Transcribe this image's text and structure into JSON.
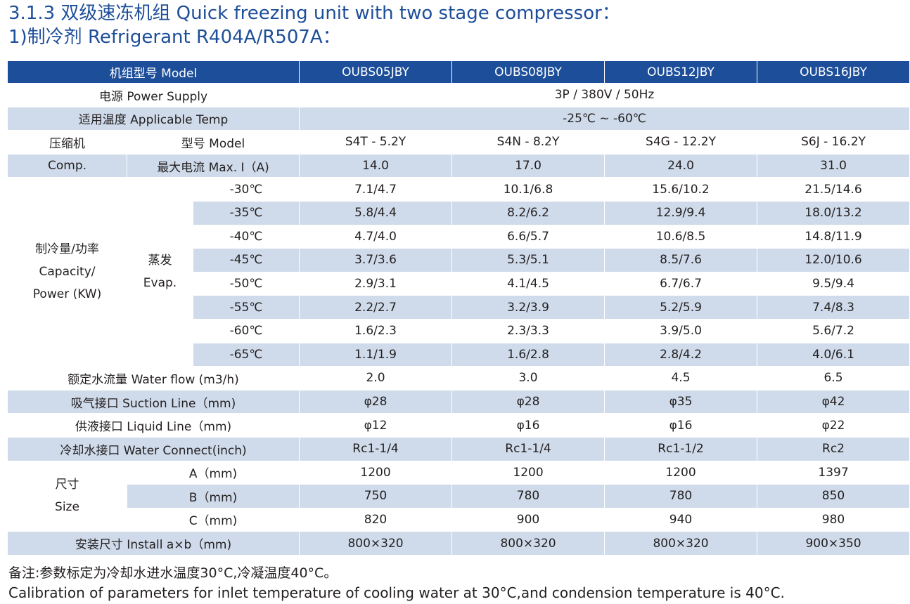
{
  "title": {
    "line1": "3.1.3 双级速冻机组 Quick freezing unit with two stage compressor：",
    "line2": "1)制冷剂 Refrigerant  R404A/R507A："
  },
  "colors": {
    "header": "#1d4e9a",
    "band": "#cfdbea",
    "title": "#1d4e9a"
  },
  "table": {
    "header": {
      "label": "机组型号 Model",
      "models": [
        "OUBS05JBY",
        "OUBS08JBY",
        "OUBS12JBY",
        "OUBS16JBY"
      ]
    },
    "power_supply": {
      "label": "电源 Power Supply",
      "value": "3P / 380V / 50Hz"
    },
    "applicable_temp": {
      "label": "适用温度 Applicable Temp",
      "value": "-25℃ ~ -60℃"
    },
    "compressor": {
      "group_cn": "压缩机",
      "group_en": "Comp.",
      "model_label": "型号 Model",
      "models": [
        "S4T - 5.2Y",
        "S4N - 8.2Y",
        "S4G - 12.2Y",
        "S6J - 16.2Y"
      ],
      "current_label": "最大电流 Max. I（A)",
      "currents": [
        "14.0",
        "17.0",
        "24.0",
        "31.0"
      ]
    },
    "capacity": {
      "group_l1": "制冷量/功率",
      "group_l2": "Capacity/",
      "group_l3": "Power (KW)",
      "evap_l1": "蒸发",
      "evap_l2": "Evap.",
      "rows": [
        {
          "temp": "-30℃",
          "values": [
            "7.1/4.7",
            "10.1/6.8",
            "15.6/10.2",
            "21.5/14.6"
          ]
        },
        {
          "temp": "-35℃",
          "values": [
            "5.8/4.4",
            "8.2/6.2",
            "12.9/9.4",
            "18.0/13.2"
          ]
        },
        {
          "temp": "-40℃",
          "values": [
            "4.7/4.0",
            "6.6/5.7",
            "10.6/8.5",
            "14.8/11.9"
          ]
        },
        {
          "temp": "-45℃",
          "values": [
            "3.7/3.6",
            "5.3/5.1",
            "8.5/7.6",
            "12.0/10.6"
          ]
        },
        {
          "temp": "-50℃",
          "values": [
            "2.9/3.1",
            "4.1/4.5",
            "6.7/6.7",
            "9.5/9.4"
          ]
        },
        {
          "temp": "-55℃",
          "values": [
            "2.2/2.7",
            "3.2/3.9",
            "5.2/5.9",
            "7.4/8.3"
          ]
        },
        {
          "temp": "-60℃",
          "values": [
            "1.6/2.3",
            "2.3/3.3",
            "3.9/5.0",
            "5.6/7.2"
          ]
        },
        {
          "temp": "-65℃",
          "values": [
            "1.1/1.9",
            "1.6/2.8",
            "2.8/4.2",
            "4.0/6.1"
          ]
        }
      ]
    },
    "water_flow": {
      "label": "额定水流量 Water flow (m3/h)",
      "values": [
        "2.0",
        "3.0",
        "4.5",
        "6.5"
      ]
    },
    "suction_line": {
      "label": "吸气接口 Suction Line（mm)",
      "values": [
        "φ28",
        "φ28",
        "φ35",
        "φ42"
      ]
    },
    "liquid_line": {
      "label": "供液接口 Liquid Line（mm)",
      "values": [
        "φ12",
        "φ16",
        "φ16",
        "φ22"
      ]
    },
    "water_connect": {
      "label": "冷却水接口 Water Connect(inch)",
      "values": [
        "Rc1-1/4",
        "Rc1-1/4",
        "Rc1-1/2",
        "Rc2"
      ]
    },
    "size": {
      "group_cn": "尺寸",
      "group_en": "Size",
      "rows": [
        {
          "label": "A（mm)",
          "values": [
            "1200",
            "1200",
            "1200",
            "1397"
          ]
        },
        {
          "label": "B（mm)",
          "values": [
            "750",
            "780",
            "780",
            "850"
          ]
        },
        {
          "label": "C（mm)",
          "values": [
            "820",
            "900",
            "940",
            "980"
          ]
        }
      ]
    },
    "install": {
      "label": "安装尺寸  Install a×b（mm)",
      "values": [
        "800×320",
        "800×320",
        "800×320",
        "900×350"
      ]
    }
  },
  "notes": {
    "line1": "备注:参数标定为冷却水进水温度30°C,冷凝温度40°C。",
    "line2": "Calibration of parameters for inlet temperature of cooling water at 30°C,and condension temperature is 40°C."
  }
}
